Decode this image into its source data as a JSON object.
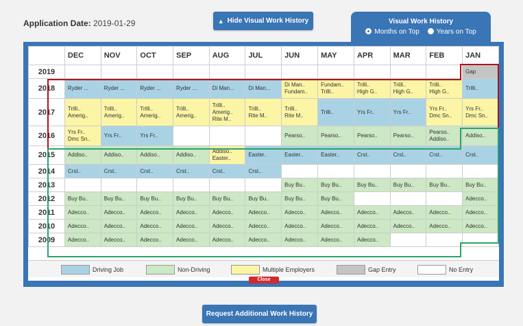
{
  "application_date": {
    "label": "Application Date:",
    "value": "2019-01-29"
  },
  "hide_button": "Hide Visual Work History",
  "request_button": "Request Additional Work History",
  "toggle": {
    "title": "Visual Work History",
    "option_months": "Months on Top",
    "option_years": "Years on Top",
    "selected": "months"
  },
  "months": [
    "DEC",
    "NOV",
    "OCT",
    "SEP",
    "AUG",
    "JUL",
    "JUN",
    "MAY",
    "APR",
    "MAR",
    "FEB",
    "JAN"
  ],
  "rows": [
    {
      "year": "2019",
      "cells": [
        [
          "",
          ""
        ],
        [
          "",
          ""
        ],
        [
          "",
          ""
        ],
        [
          "",
          ""
        ],
        [
          "",
          ""
        ],
        [
          "",
          ""
        ],
        [
          "",
          ""
        ],
        [
          "",
          ""
        ],
        [
          "",
          ""
        ],
        [
          "",
          ""
        ],
        [
          "",
          ""
        ],
        [
          "G",
          "Gap"
        ]
      ]
    },
    {
      "year": "2018",
      "cells": [
        [
          "D",
          "Ryder ..."
        ],
        [
          "D",
          "Ryder ..."
        ],
        [
          "D",
          "Ryder ..."
        ],
        [
          "D",
          "Ryder ..."
        ],
        [
          "D",
          "Di Man..."
        ],
        [
          "D",
          "Di Man..."
        ],
        [
          "M",
          "Di Man..|Fundam.."
        ],
        [
          "M",
          "Fundam..|Trilli.."
        ],
        [
          "M",
          "Trilli..|High G.."
        ],
        [
          "M",
          "Trilli..|High G.."
        ],
        [
          "M",
          "Trilli..|High G.."
        ],
        [
          "D",
          "Trilli.."
        ]
      ]
    },
    {
      "year": "2017",
      "cells": [
        [
          "M",
          "Trilli..|Amerig.."
        ],
        [
          "M",
          "Trilli..|Amerig.."
        ],
        [
          "M",
          "Trilli..|Amerig.."
        ],
        [
          "M",
          "Trilli..|Amerig.."
        ],
        [
          "M",
          "Trilli..|Amerig..|Rite M.."
        ],
        [
          "M",
          "Trilli..|Rite M.."
        ],
        [
          "M",
          "Trilli..|Rite M.."
        ],
        [
          "D",
          "Trilli.."
        ],
        [
          "D",
          "Yrs Fr.."
        ],
        [
          "D",
          "Yrs Fr.."
        ],
        [
          "M",
          "Yrs Fr..|Dmc Sn.."
        ],
        [
          "M",
          "Yrs Fr..|Dmc Sn.."
        ]
      ]
    },
    {
      "year": "2016",
      "cells": [
        [
          "M",
          "Yrs Fr..|Dmc Sn.."
        ],
        [
          "D",
          "Yrs Fr.."
        ],
        [
          "D",
          "Yrs Fr.."
        ],
        [
          "E",
          ""
        ],
        [
          "E",
          ""
        ],
        [
          "E",
          ""
        ],
        [
          "N",
          "Pearso.."
        ],
        [
          "N",
          "Pearso.."
        ],
        [
          "N",
          "Pearso.."
        ],
        [
          "N",
          "Pearso.."
        ],
        [
          "N",
          "Pearso..|Addiso.."
        ],
        [
          "N",
          "Addiso.."
        ]
      ]
    },
    {
      "year": "2015",
      "cells": [
        [
          "N",
          "Addiso.."
        ],
        [
          "N",
          "Addiso.."
        ],
        [
          "N",
          "Addiso.."
        ],
        [
          "N",
          "Addiso.."
        ],
        [
          "M",
          "Addiso..|Easter.."
        ],
        [
          "D",
          "Easter.."
        ],
        [
          "D",
          "Easter.."
        ],
        [
          "D",
          "Easter.."
        ],
        [
          "D",
          "Crst.."
        ],
        [
          "D",
          "Crst.."
        ],
        [
          "D",
          "Crst.."
        ],
        [
          "D",
          "Crst.."
        ]
      ]
    },
    {
      "year": "2014",
      "cells": [
        [
          "D",
          "Crst.."
        ],
        [
          "D",
          "Crst.."
        ],
        [
          "D",
          "Crst.."
        ],
        [
          "D",
          "Crst.."
        ],
        [
          "D",
          "Crst.."
        ],
        [
          "D",
          "Crst.."
        ],
        [
          "E",
          ""
        ],
        [
          "E",
          ""
        ],
        [
          "E",
          ""
        ],
        [
          "E",
          ""
        ],
        [
          "E",
          ""
        ],
        [
          "E",
          ""
        ]
      ]
    },
    {
      "year": "2013",
      "cells": [
        [
          "E",
          ""
        ],
        [
          "E",
          ""
        ],
        [
          "E",
          ""
        ],
        [
          "E",
          ""
        ],
        [
          "E",
          ""
        ],
        [
          "E",
          ""
        ],
        [
          "N",
          "Buy Bu.."
        ],
        [
          "N",
          "Buy Bu.."
        ],
        [
          "N",
          "Buy Bu.."
        ],
        [
          "N",
          "Buy Bu.."
        ],
        [
          "N",
          "Buy Bu.."
        ],
        [
          "N",
          "Buy Bu.."
        ]
      ]
    },
    {
      "year": "2012",
      "cells": [
        [
          "N",
          "Buy Bu.."
        ],
        [
          "N",
          "Buy Bu.."
        ],
        [
          "N",
          "Buy Bu.."
        ],
        [
          "N",
          "Buy Bu.."
        ],
        [
          "N",
          "Buy Bu.."
        ],
        [
          "N",
          "Buy Bu.."
        ],
        [
          "N",
          "Buy Bu.."
        ],
        [
          "N",
          "Buy Bu.."
        ],
        [
          "E",
          ""
        ],
        [
          "E",
          ""
        ],
        [
          "E",
          ""
        ],
        [
          "N",
          "Adecco.."
        ]
      ]
    },
    {
      "year": "2011",
      "cells": [
        [
          "N",
          "Adecco.."
        ],
        [
          "N",
          "Adecco.."
        ],
        [
          "N",
          "Adecco.."
        ],
        [
          "N",
          "Adecco.."
        ],
        [
          "N",
          "Adecco.."
        ],
        [
          "N",
          "Adecco.."
        ],
        [
          "N",
          "Adecco.."
        ],
        [
          "N",
          "Adecco.."
        ],
        [
          "N",
          "Adecco.."
        ],
        [
          "N",
          "Adecco.."
        ],
        [
          "N",
          "Adecco.."
        ],
        [
          "N",
          "Adecco.."
        ]
      ]
    },
    {
      "year": "2010",
      "cells": [
        [
          "N",
          "Adecco.."
        ],
        [
          "N",
          "Adecco.."
        ],
        [
          "N",
          "Adecco.."
        ],
        [
          "N",
          "Adecco.."
        ],
        [
          "N",
          "Adecco.."
        ],
        [
          "N",
          "Adecco.."
        ],
        [
          "N",
          "Adecco.."
        ],
        [
          "N",
          "Adecco.."
        ],
        [
          "N",
          "Adecco.."
        ],
        [
          "N",
          "Adecco.."
        ],
        [
          "N",
          "Adecco.."
        ],
        [
          "N",
          "Adecco.."
        ]
      ]
    },
    {
      "year": "2009",
      "cells": [
        [
          "N",
          "Adecco.."
        ],
        [
          "N",
          "Adecco.."
        ],
        [
          "N",
          "Adecco.."
        ],
        [
          "N",
          "Adecco.."
        ],
        [
          "N",
          "Adecco.."
        ],
        [
          "N",
          "Adecco.."
        ],
        [
          "N",
          "Adecco.."
        ],
        [
          "N",
          "Adecco.."
        ],
        [
          "N",
          "Adecco.."
        ],
        [
          "E",
          ""
        ],
        [
          "E",
          ""
        ],
        [
          "E",
          ""
        ]
      ]
    }
  ],
  "legend": [
    {
      "label": "Driving Job",
      "color": "#a9d3e5"
    },
    {
      "label": "Non-Driving",
      "color": "#cce8c4"
    },
    {
      "label": "Multiple Employers",
      "color": "#fbf5a5"
    },
    {
      "label": "Gap Entry",
      "color": "#c4c4c4"
    },
    {
      "label": "No Entry",
      "color": "#ffffff"
    }
  ],
  "close_label": "Close",
  "colors": {
    "accent": "#3a75b5",
    "highlight_red": "#b0121b",
    "highlight_green": "#2aa36b"
  }
}
